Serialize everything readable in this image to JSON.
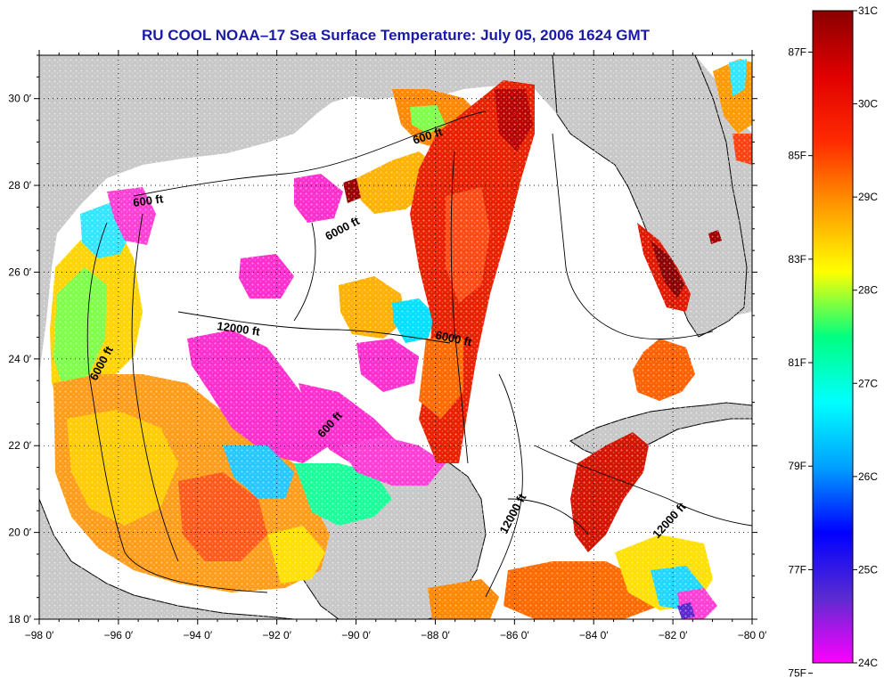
{
  "title": "RU COOL  NOAA–17  Sea Surface Temperature:  July 05, 2006 1624 GMT",
  "map": {
    "lon_range": [
      -98,
      -80
    ],
    "lat_range": [
      18,
      31
    ],
    "lon_ticks": [
      "−98 0′",
      "−96 0′",
      "−94 0′",
      "−92 0′",
      "−90 0′",
      "−88 0′",
      "−86 0′",
      "−84 0′",
      "−82 0′",
      "−80 0′"
    ],
    "lat_ticks": [
      "18 0′",
      "20 0′",
      "22 0′",
      "24 0′",
      "26 0′",
      "28 0′",
      "30 0′"
    ],
    "contour_labels": [
      "600 ft",
      "600 ft",
      "6000 ft",
      "12000 ft",
      "6000 ft",
      "6000 ft",
      "600 ft",
      "12000 ft",
      "12000 ft"
    ],
    "land_color": "#c8c8c8",
    "nodata_color": "#ffffff"
  },
  "colorbar": {
    "celsius_labels": [
      "31C",
      "30C",
      "29C",
      "28C",
      "27C",
      "26C",
      "25C",
      "24C"
    ],
    "fahrenheit_labels": [
      "87F",
      "85F",
      "83F",
      "81F",
      "79F",
      "77F",
      "75F"
    ],
    "scale": [
      "#ff00ff",
      "#5b2bd0",
      "#0000ff",
      "#00a0ff",
      "#00ffff",
      "#00ff80",
      "#ffff00",
      "#ff9900",
      "#ff2a00",
      "#e00000",
      "#8b0000"
    ]
  }
}
